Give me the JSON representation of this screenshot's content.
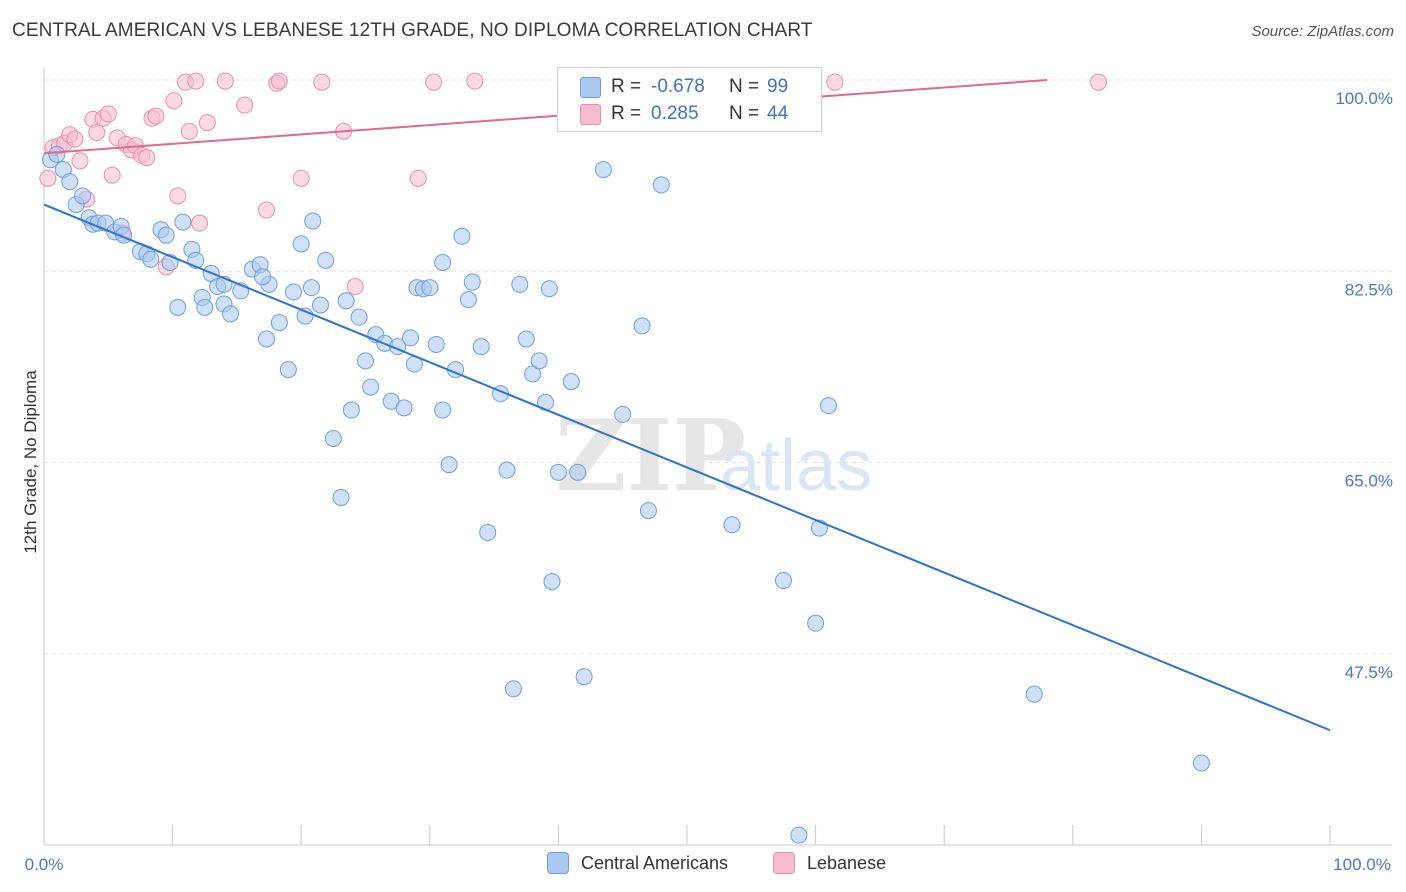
{
  "header": {
    "title": "CENTRAL AMERICAN VS LEBANESE 12TH GRADE, NO DIPLOMA CORRELATION CHART",
    "source": "Source: ZipAtlas.com"
  },
  "legend": {
    "rows": [
      {
        "r_label": "R =",
        "r_value": "-0.678",
        "n_label": "N =",
        "n_value": "99"
      },
      {
        "r_label": "R =",
        "r_value": "0.285",
        "n_label": "N =",
        "n_value": "44"
      }
    ]
  },
  "bottom_legend": {
    "series1": "Central Americans",
    "series2": "Lebanese"
  },
  "colors": {
    "blue_fill": "#aac8f0",
    "blue_stroke": "#6f9ee0",
    "blue_line": "#2e72d2",
    "pink_fill": "#f7bccd",
    "pink_stroke": "#ea8fab",
    "pink_line": "#e06a8e",
    "tick_label": "#4a77c9",
    "grid": "#e4e4e4"
  },
  "chart_data": {
    "type": "scatter",
    "title": "CENTRAL AMERICAN VS LEBANESE 12TH GRADE, NO DIPLOMA CORRELATION CHART",
    "xlabel": "",
    "ylabel": "12th Grade, No Diploma",
    "xlim": [
      0,
      100
    ],
    "ylim": [
      30,
      100
    ],
    "x_tick_labels": [
      "0.0%",
      "100.0%"
    ],
    "y_ticks": [
      {
        "value": 100.0,
        "label": "100.0%"
      },
      {
        "value": 82.5,
        "label": "82.5%"
      },
      {
        "value": 65.0,
        "label": "65.0%"
      },
      {
        "value": 47.5,
        "label": "47.5%"
      }
    ],
    "grid": true,
    "watermark": "ZIPatlas",
    "series": [
      {
        "name": "Central Americans",
        "color": "#6f9ee0",
        "trend": {
          "x": [
            0,
            100
          ],
          "y": [
            88.6,
            40.5
          ]
        },
        "points": [
          [
            0.5,
            92.7
          ],
          [
            1.0,
            93.2
          ],
          [
            1.5,
            91.8
          ],
          [
            2.0,
            90.7
          ],
          [
            2.5,
            88.6
          ],
          [
            3.0,
            89.4
          ],
          [
            3.5,
            87.4
          ],
          [
            3.8,
            86.8
          ],
          [
            4.2,
            86.9
          ],
          [
            4.8,
            86.9
          ],
          [
            5.5,
            86.1
          ],
          [
            6.0,
            86.6
          ],
          [
            7.5,
            84.3
          ],
          [
            8.0,
            84.1
          ],
          [
            8.3,
            83.6
          ],
          [
            9.1,
            86.3
          ],
          [
            9.5,
            85.8
          ],
          [
            10.8,
            87.0
          ],
          [
            9.8,
            83.3
          ],
          [
            10.4,
            79.2
          ],
          [
            11.5,
            84.5
          ],
          [
            11.8,
            83.5
          ],
          [
            12.3,
            80.1
          ],
          [
            12.5,
            79.2
          ],
          [
            13.0,
            82.3
          ],
          [
            13.5,
            81.1
          ],
          [
            14.0,
            81.3
          ],
          [
            14.0,
            79.5
          ],
          [
            14.5,
            78.6
          ],
          [
            15.3,
            80.7
          ],
          [
            16.2,
            82.7
          ],
          [
            16.8,
            83.1
          ],
          [
            17.3,
            76.3
          ],
          [
            17.5,
            81.3
          ],
          [
            18.3,
            77.8
          ],
          [
            19.0,
            73.5
          ],
          [
            19.4,
            80.6
          ],
          [
            20.0,
            85.0
          ],
          [
            20.3,
            78.4
          ],
          [
            20.8,
            81.0
          ],
          [
            20.9,
            87.1
          ],
          [
            21.5,
            79.4
          ],
          [
            21.9,
            83.5
          ],
          [
            22.5,
            67.2
          ],
          [
            23.1,
            61.8
          ],
          [
            23.5,
            79.8
          ],
          [
            23.9,
            69.8
          ],
          [
            24.5,
            78.3
          ],
          [
            25.0,
            74.3
          ],
          [
            25.4,
            71.9
          ],
          [
            25.8,
            76.7
          ],
          [
            26.5,
            75.9
          ],
          [
            27.0,
            70.6
          ],
          [
            27.5,
            75.6
          ],
          [
            28.0,
            70.0
          ],
          [
            28.5,
            76.4
          ],
          [
            29.0,
            81.0
          ],
          [
            29.5,
            80.9
          ],
          [
            30.0,
            81.0
          ],
          [
            30.5,
            75.8
          ],
          [
            31.0,
            69.8
          ],
          [
            31.0,
            83.3
          ],
          [
            31.5,
            64.8
          ],
          [
            32.0,
            73.5
          ],
          [
            32.5,
            85.7
          ],
          [
            33.0,
            79.9
          ],
          [
            33.3,
            81.5
          ],
          [
            34.0,
            75.6
          ],
          [
            34.5,
            58.6
          ],
          [
            35.5,
            71.3
          ],
          [
            36.0,
            64.3
          ],
          [
            37.0,
            81.3
          ],
          [
            37.5,
            76.3
          ],
          [
            38.0,
            73.1
          ],
          [
            38.5,
            74.3
          ],
          [
            39.0,
            70.5
          ],
          [
            39.5,
            54.1
          ],
          [
            40.0,
            64.1
          ],
          [
            41.0,
            72.4
          ],
          [
            41.5,
            64.1
          ],
          [
            42.0,
            45.4
          ],
          [
            43.5,
            91.8
          ],
          [
            45.0,
            69.4
          ],
          [
            46.5,
            77.5
          ],
          [
            47.0,
            60.6
          ],
          [
            48.0,
            90.4
          ],
          [
            50.0,
            99.6
          ],
          [
            53.5,
            59.3
          ],
          [
            57.5,
            54.2
          ],
          [
            58.7,
            30.9
          ],
          [
            60.0,
            50.3
          ],
          [
            60.3,
            59.0
          ],
          [
            61.0,
            70.2
          ],
          [
            77.0,
            43.8
          ],
          [
            90.0,
            37.5
          ],
          [
            39.3,
            80.9
          ],
          [
            28.8,
            74.0
          ],
          [
            6.2,
            85.8
          ],
          [
            17.0,
            82.0
          ],
          [
            36.5,
            44.3
          ]
        ]
      },
      {
        "name": "Lebanese",
        "color": "#ea8fab",
        "trend": {
          "x": [
            0,
            78
          ],
          "y": [
            93.3,
            100.0
          ]
        },
        "points": [
          [
            0.3,
            91.0
          ],
          [
            0.7,
            93.8
          ],
          [
            1.2,
            94.0
          ],
          [
            1.6,
            94.2
          ],
          [
            2.0,
            95.0
          ],
          [
            2.4,
            94.6
          ],
          [
            2.8,
            92.6
          ],
          [
            3.3,
            89.1
          ],
          [
            3.8,
            96.4
          ],
          [
            4.1,
            95.2
          ],
          [
            4.6,
            96.5
          ],
          [
            5.0,
            96.9
          ],
          [
            5.3,
            91.3
          ],
          [
            5.7,
            94.7
          ],
          [
            6.1,
            86.0
          ],
          [
            6.4,
            94.1
          ],
          [
            6.8,
            93.6
          ],
          [
            7.1,
            94.0
          ],
          [
            7.6,
            93.1
          ],
          [
            8.0,
            92.9
          ],
          [
            8.4,
            96.5
          ],
          [
            8.7,
            96.7
          ],
          [
            9.5,
            82.9
          ],
          [
            10.1,
            98.1
          ],
          [
            10.4,
            89.4
          ],
          [
            11.0,
            99.8
          ],
          [
            11.3,
            95.3
          ],
          [
            11.8,
            99.9
          ],
          [
            12.1,
            86.9
          ],
          [
            12.7,
            96.1
          ],
          [
            14.1,
            99.9
          ],
          [
            15.6,
            97.7
          ],
          [
            17.3,
            88.1
          ],
          [
            18.1,
            99.7
          ],
          [
            18.3,
            99.9
          ],
          [
            20.0,
            91.0
          ],
          [
            21.6,
            99.8
          ],
          [
            23.3,
            95.3
          ],
          [
            24.2,
            81.1
          ],
          [
            29.1,
            91.0
          ],
          [
            30.3,
            99.8
          ],
          [
            33.5,
            99.9
          ],
          [
            61.5,
            99.8
          ],
          [
            82.0,
            99.8
          ]
        ]
      }
    ]
  }
}
